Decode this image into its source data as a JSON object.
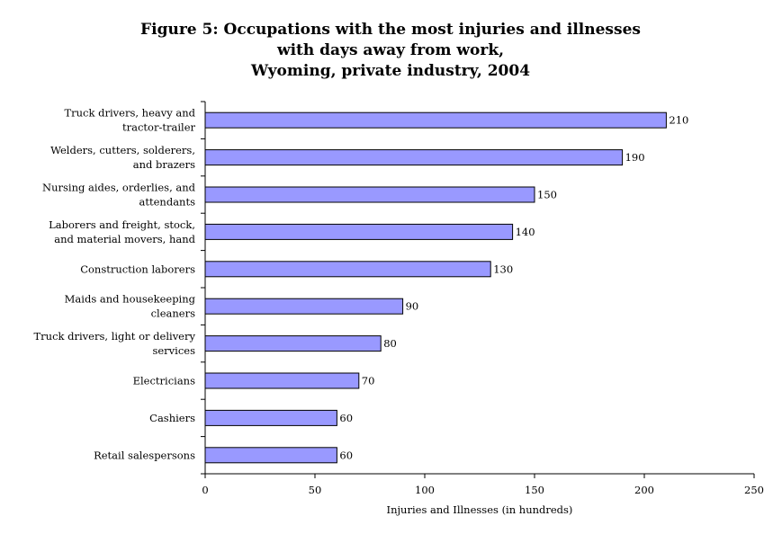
{
  "chart_data": {
    "type": "bar",
    "orientation": "horizontal",
    "title_lines": [
      "Figure 5:  Occupations with the most injuries and illnesses",
      "with days away from work,",
      "Wyoming, private industry, 2004"
    ],
    "categories": [
      [
        "Truck drivers, heavy and",
        "tractor-trailer"
      ],
      [
        "Welders, cutters, solderers,",
        "and brazers"
      ],
      [
        "Nursing aides, orderlies, and",
        "attendants"
      ],
      [
        "Laborers and freight, stock,",
        "and material movers, hand"
      ],
      [
        "Construction laborers"
      ],
      [
        "Maids and housekeeping",
        "cleaners"
      ],
      [
        "Truck drivers, light or delivery",
        "services"
      ],
      [
        "Electricians"
      ],
      [
        "Cashiers"
      ],
      [
        "Retail salespersons"
      ]
    ],
    "values": [
      210,
      190,
      150,
      140,
      130,
      90,
      80,
      70,
      60,
      60
    ],
    "value_labels": [
      "210",
      "190",
      "150",
      "140",
      "130",
      "90",
      "80",
      "70",
      "60",
      "60"
    ],
    "xlabel": "Injuries and Illnesses (in hundreds)",
    "ylabel": "",
    "xlim": [
      0,
      250
    ],
    "xticks": [
      0,
      50,
      100,
      150,
      200,
      250
    ],
    "xtick_labels": [
      "0",
      "50",
      "100",
      "150",
      "200",
      "250"
    ],
    "grid": false,
    "legend": "none",
    "bar_color": "#9999ff",
    "bar_edge_color": "#000000"
  }
}
